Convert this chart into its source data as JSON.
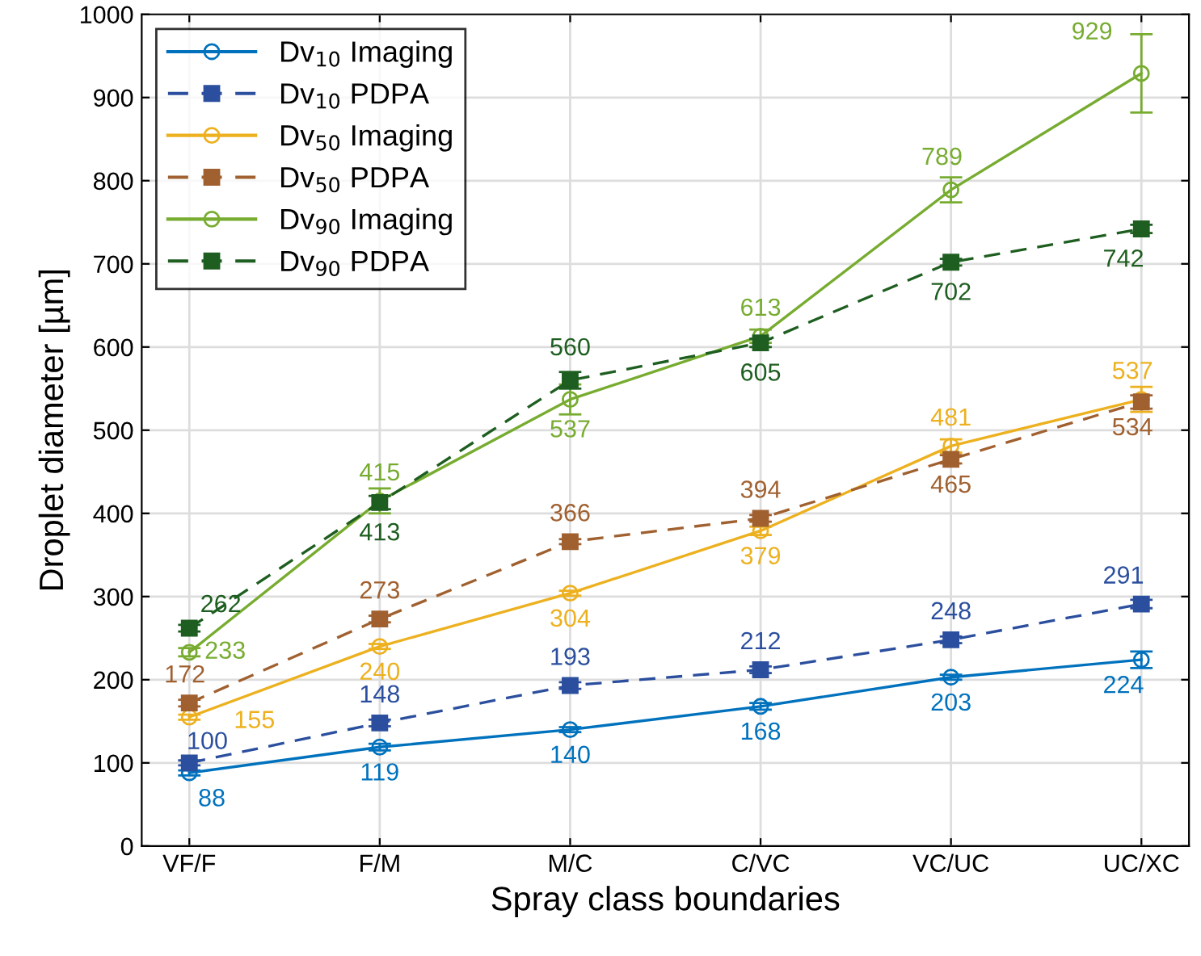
{
  "chart_data": {
    "type": "line",
    "xlabel": "Spray class boundaries",
    "ylabel": "Droplet diameter [µm]",
    "categories": [
      "VF/F",
      "F/M",
      "M/C",
      "C/VC",
      "VC/UC",
      "UC/XC"
    ],
    "ylim": [
      0,
      1000
    ],
    "yticks": [
      0,
      100,
      200,
      300,
      400,
      500,
      600,
      700,
      800,
      900,
      1000
    ],
    "grid": true,
    "legend": "top left",
    "data_labels": true,
    "series": [
      {
        "name": "Dv$_{10}$ Imaging",
        "color": "#0072bd",
        "marker": "circle",
        "line_style": "solid",
        "values": [
          88,
          119,
          140,
          168,
          203,
          224
        ],
        "errors": [
          3,
          4,
          3,
          4,
          3,
          10
        ]
      },
      {
        "name": "Dv$_{10}$ PDPA",
        "color": "#2b4f9e",
        "marker": "square",
        "line_style": "dashed",
        "values": [
          100,
          148,
          193,
          212,
          248,
          291
        ],
        "errors": [
          3,
          4,
          4,
          4,
          4,
          5
        ]
      },
      {
        "name": "Dv$_{50}$ Imaging",
        "color": "#edb120",
        "marker": "circle",
        "line_style": "solid",
        "values": [
          155,
          240,
          304,
          379,
          481,
          537
        ],
        "errors": [
          3,
          3,
          3,
          5,
          8,
          15
        ]
      },
      {
        "name": "Dv$_{50}$ PDPA",
        "color": "#a0602f",
        "marker": "square",
        "line_style": "dashed",
        "values": [
          172,
          273,
          366,
          394,
          465,
          534
        ],
        "errors": [
          4,
          4,
          3,
          4,
          5,
          8
        ]
      },
      {
        "name": "Dv$_{90}$ Imaging",
        "color": "#77ac30",
        "marker": "circle",
        "line_style": "solid",
        "values": [
          233,
          415,
          537,
          613,
          789,
          929
        ],
        "errors": [
          5,
          15,
          18,
          8,
          15,
          47
        ]
      },
      {
        "name": "Dv$_{90}$ PDPA",
        "color": "#1e5e20",
        "marker": "square",
        "line_style": "dashed",
        "values": [
          262,
          413,
          560,
          605,
          702,
          742
        ],
        "errors": [
          4,
          8,
          10,
          5,
          4,
          5
        ]
      }
    ]
  }
}
